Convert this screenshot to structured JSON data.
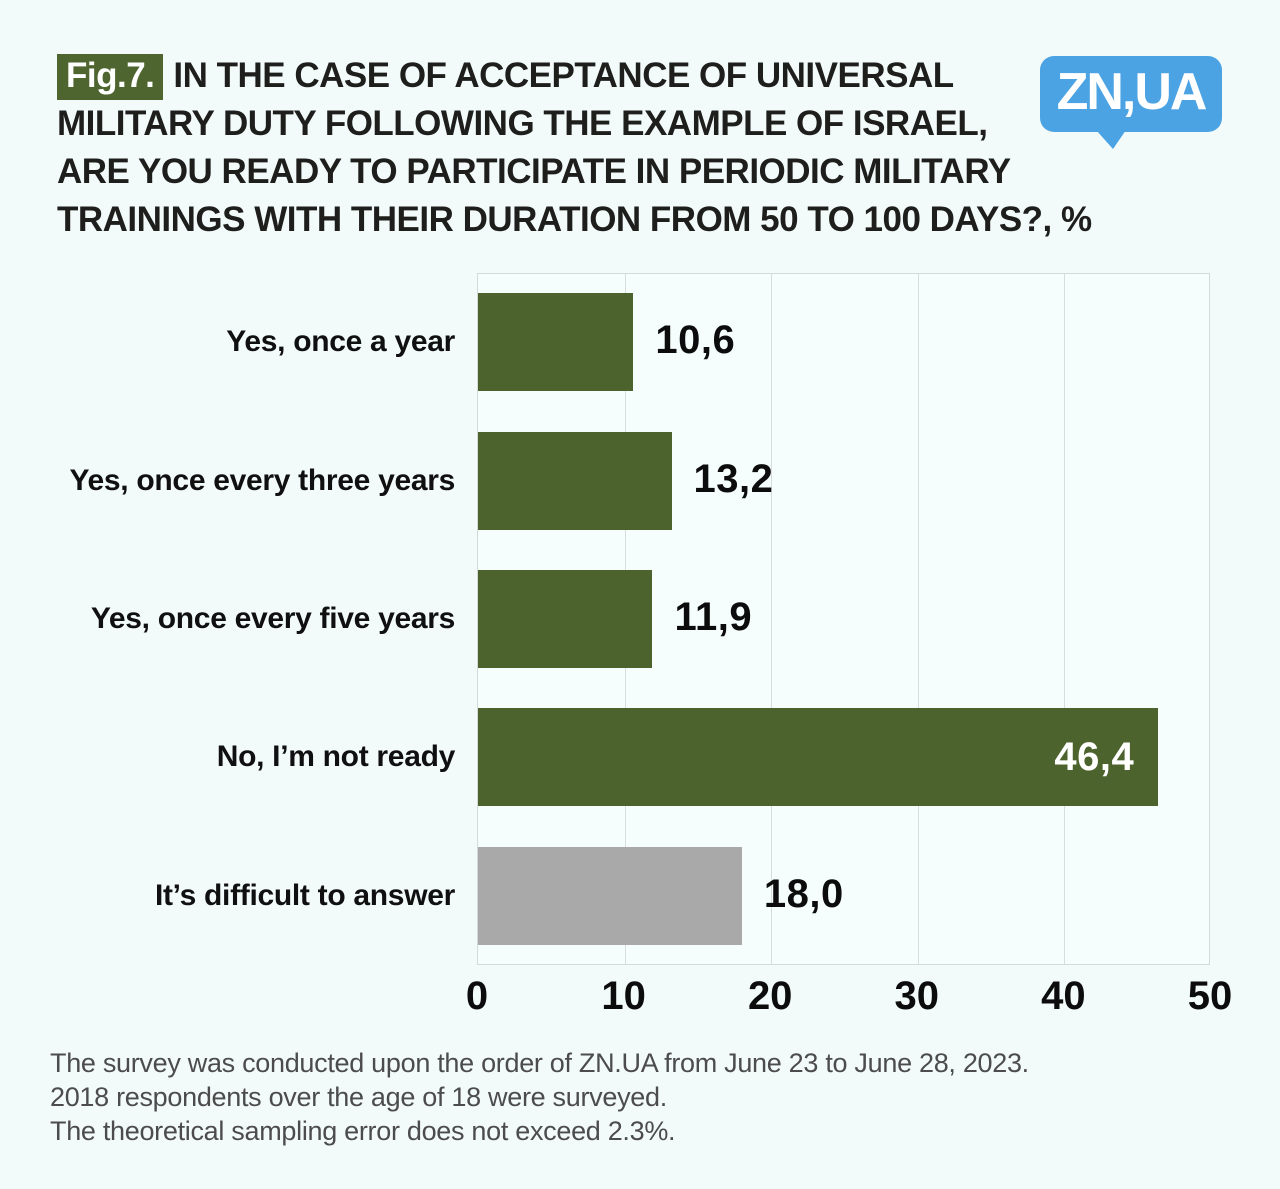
{
  "header": {
    "badge": "Fig.7.",
    "title_lines": [
      "IN THE CASE OF ACCEPTANCE OF UNIVERSAL",
      "MILITARY DUTY FOLLOWING THE EXAMPLE OF ISRAEL,",
      "ARE YOU READY TO PARTICIPATE IN PERIODIC MILITARY",
      "TRAININGS WITH THEIR DURATION FROM 50 TO 100 DAYS?, %"
    ],
    "logo_text": "ZN,UA"
  },
  "chart_data": {
    "type": "bar",
    "orientation": "horizontal",
    "title": "Fig.7. In the case of acceptance of universal military duty following the example of Israel, are you ready to participate in periodic military trainings with their duration from 50 to 100 days?, %",
    "categories": [
      "Yes, once a year",
      "Yes, once every three years",
      "Yes, once every five years",
      "No, I’m not ready",
      "It’s difficult to answer"
    ],
    "values": [
      10.6,
      13.2,
      11.9,
      46.4,
      18.0
    ],
    "display_values": [
      "10,6",
      "13,2",
      "11,9",
      "46,4",
      "18,0"
    ],
    "bar_colors": [
      "#4d632e",
      "#4d632e",
      "#4d632e",
      "#4d632e",
      "#a9a9a9"
    ],
    "value_inside": [
      false,
      false,
      false,
      true,
      false
    ],
    "xlim": [
      0,
      50
    ],
    "x_ticks": [
      0,
      10,
      20,
      30,
      40,
      50
    ],
    "grid": true,
    "legend": null,
    "xlabel": "%",
    "ylabel": ""
  },
  "colors": {
    "background": "#f2fbfa",
    "accent_green": "#4d632e",
    "accent_gray": "#a9a9a9",
    "logo_blue": "#4ba3e3",
    "badge_green": "#4e652f",
    "gridline": "#d8dddc",
    "title_text": "#1e1e1c",
    "footer_text": "#4c4c4c"
  },
  "footer": {
    "lines": [
      "The survey was conducted upon the order of ZN.UA from June 23 to June 28, 2023.",
      "2018 respondents over the age of 18 were surveyed.",
      "The theoretical sampling error does not exceed 2.3%."
    ]
  }
}
